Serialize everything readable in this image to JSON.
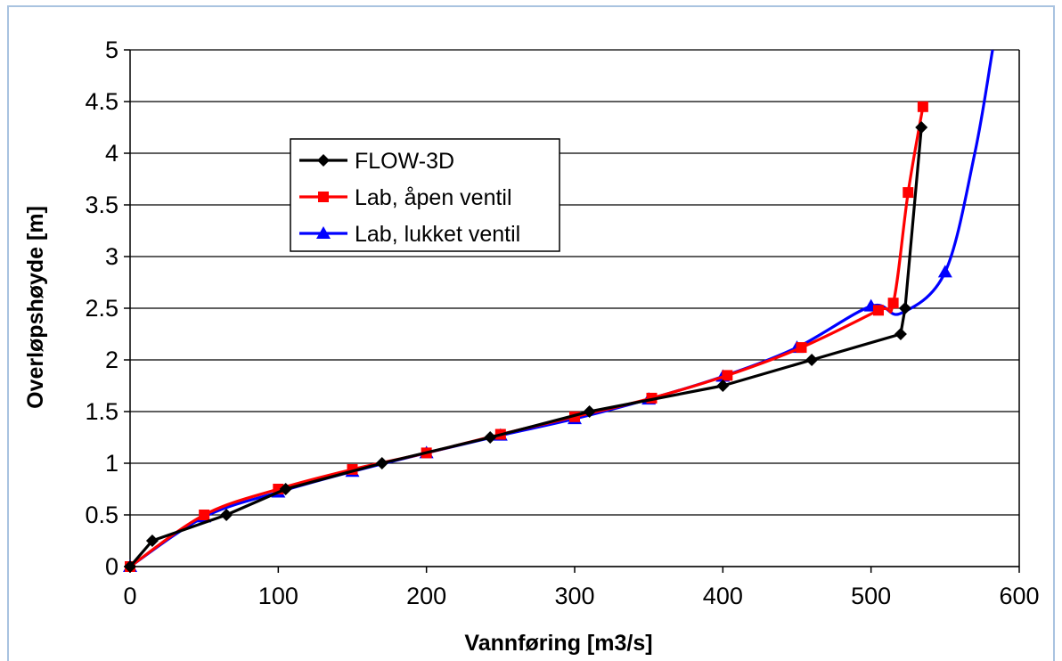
{
  "chart_data": {
    "type": "line",
    "xlabel": "Vannføring [m3/s]",
    "ylabel": "Overløpshøyde [m]",
    "xlim": [
      0,
      600
    ],
    "ylim": [
      0,
      5
    ],
    "x_ticks": [
      "0",
      "100",
      "200",
      "300",
      "400",
      "500",
      "600"
    ],
    "y_ticks": [
      "0",
      "0.5",
      "1",
      "1.5",
      "2",
      "2.5",
      "3",
      "3.5",
      "4",
      "4.5",
      "5"
    ],
    "grid": "horizontal",
    "legend_position": "upper-left inside",
    "series": [
      {
        "name": "FLOW-3D",
        "color": "#000000",
        "marker": "diamond",
        "points": [
          [
            0,
            0
          ],
          [
            15,
            0.25
          ],
          [
            65,
            0.5
          ],
          [
            105,
            0.75
          ],
          [
            170,
            1.0
          ],
          [
            243,
            1.25
          ],
          [
            310,
            1.5
          ],
          [
            400,
            1.75
          ],
          [
            460,
            2.0
          ],
          [
            520,
            2.25
          ],
          [
            523,
            2.5
          ],
          [
            534,
            4.25
          ]
        ]
      },
      {
        "name": "Lab, åpen ventil",
        "color": "#ff0000",
        "marker": "square",
        "points": [
          [
            0,
            0
          ],
          [
            50,
            0.5
          ],
          [
            100,
            0.75
          ],
          [
            150,
            0.94
          ],
          [
            200,
            1.1
          ],
          [
            250,
            1.28
          ],
          [
            300,
            1.45
          ],
          [
            352,
            1.63
          ],
          [
            403,
            1.85
          ],
          [
            453,
            2.12
          ],
          [
            505,
            2.48
          ],
          [
            515,
            2.55
          ],
          [
            525,
            3.62
          ],
          [
            535,
            4.45
          ]
        ]
      },
      {
        "name": "Lab, lukket ventil",
        "color": "#0000ff",
        "marker": "triangle",
        "points": [
          [
            0,
            0
          ],
          [
            50,
            0.48
          ],
          [
            100,
            0.72
          ],
          [
            150,
            0.92
          ],
          [
            200,
            1.1
          ],
          [
            250,
            1.27
          ],
          [
            300,
            1.43
          ],
          [
            350,
            1.62
          ],
          [
            400,
            1.84
          ],
          [
            450,
            2.12
          ],
          [
            500,
            2.52
          ],
          [
            520,
            2.45
          ],
          [
            550,
            2.85
          ],
          [
            570,
            4.0
          ],
          [
            582,
            5.0
          ]
        ],
        "marker_points": [
          [
            0,
            0
          ],
          [
            50,
            0.48
          ],
          [
            100,
            0.72
          ],
          [
            150,
            0.92
          ],
          [
            200,
            1.1
          ],
          [
            250,
            1.27
          ],
          [
            300,
            1.43
          ],
          [
            350,
            1.62
          ],
          [
            400,
            1.84
          ],
          [
            450,
            2.12
          ],
          [
            500,
            2.52
          ],
          [
            550,
            2.85
          ]
        ]
      }
    ]
  }
}
